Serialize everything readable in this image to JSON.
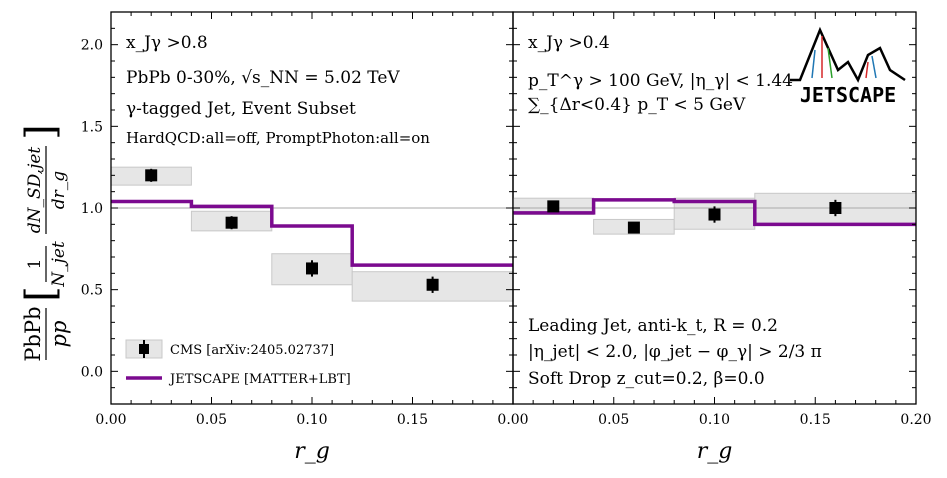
{
  "chart_data": {
    "type": "step-with-points",
    "y_label": {
      "ratio_num": "PbPb",
      "ratio_den": "pp",
      "frac1_num": "1",
      "frac1_den": "N_jet",
      "frac2_num": "dN_SD,jet",
      "frac2_den": "dr_g"
    },
    "y_range": [
      -0.2,
      2.2
    ],
    "y_ticks": [
      "0.0",
      "0.5",
      "1.0",
      "1.5",
      "2.0"
    ],
    "y_tick_values": [
      0.0,
      0.5,
      1.0,
      1.5,
      2.0
    ],
    "reference_line": 1.0,
    "legend": {
      "cms": "CMS [arXiv:2405.02737]",
      "jetscape": "JETSCAPE [MATTER+LBT]"
    },
    "logo_text": "JETSCAPE",
    "panels": [
      {
        "x_label": "r_g",
        "x_range": [
          0.0,
          0.2
        ],
        "x_ticks": [
          "0.00",
          "0.05",
          "0.10",
          "0.15"
        ],
        "x_tick_values": [
          0.0,
          0.05,
          0.1,
          0.15
        ],
        "annotations": [
          "x_Jγ >0.8",
          "PbPb 0-30%, √s_NN = 5.02 TeV",
          "γ-tagged Jet, Event Subset",
          "HardQCD:all=off, PromptPhoton:all=on"
        ],
        "cms": [
          {
            "x": 0.02,
            "y": 1.2,
            "err": 0.04,
            "sys_low": 1.14,
            "sys_high": 1.25,
            "bin": [
              0.0,
              0.04
            ]
          },
          {
            "x": 0.06,
            "y": 0.91,
            "err": 0.04,
            "sys_low": 0.86,
            "sys_high": 0.98,
            "bin": [
              0.04,
              0.08
            ]
          },
          {
            "x": 0.1,
            "y": 0.63,
            "err": 0.05,
            "sys_low": 0.53,
            "sys_high": 0.72,
            "bin": [
              0.08,
              0.12
            ]
          },
          {
            "x": 0.16,
            "y": 0.53,
            "err": 0.05,
            "sys_low": 0.43,
            "sys_high": 0.61,
            "bin": [
              0.12,
              0.2
            ]
          }
        ],
        "jetscape": {
          "edges": [
            0.0,
            0.04,
            0.08,
            0.12,
            0.2
          ],
          "values": [
            1.04,
            1.01,
            0.89,
            0.65
          ]
        }
      },
      {
        "x_label": "r_g",
        "x_range": [
          0.0,
          0.2
        ],
        "x_ticks": [
          "0.00",
          "0.05",
          "0.10",
          "0.15",
          "0.20"
        ],
        "x_tick_values": [
          0.0,
          0.05,
          0.1,
          0.15,
          0.2
        ],
        "annotations": [
          "x_Jγ >0.4",
          "p_T^γ > 100 GeV, |η_γ| < 1.44",
          "∑_{Δr<0.4} p_T < 5 GeV",
          "Leading Jet, anti-k_t, R = 0.2",
          "|η_jet| < 2.0, |φ_jet − φ_γ| > 2/3 π",
          "Soft Drop z_cut=0.2, β=0.0"
        ],
        "cms": [
          {
            "x": 0.02,
            "y": 1.01,
            "err": 0.03,
            "sys_low": 0.96,
            "sys_high": 1.06,
            "bin": [
              0.0,
              0.04
            ]
          },
          {
            "x": 0.06,
            "y": 0.88,
            "err": 0.03,
            "sys_low": 0.84,
            "sys_high": 0.93,
            "bin": [
              0.04,
              0.08
            ]
          },
          {
            "x": 0.1,
            "y": 0.96,
            "err": 0.05,
            "sys_low": 0.87,
            "sys_high": 1.06,
            "bin": [
              0.08,
              0.12
            ]
          },
          {
            "x": 0.16,
            "y": 1.0,
            "err": 0.05,
            "sys_low": 0.9,
            "sys_high": 1.09,
            "bin": [
              0.12,
              0.2
            ]
          }
        ],
        "jetscape": {
          "edges": [
            0.0,
            0.04,
            0.08,
            0.12,
            0.2
          ],
          "values": [
            0.97,
            1.05,
            1.04,
            0.9
          ]
        }
      }
    ]
  },
  "colors": {
    "jetscape_line": "#7b0a8f",
    "sys_band": "#e6e6e6",
    "sys_band_stroke": "#c8c8c8",
    "reference_line": "#aaaaaa",
    "marker": "#000000"
  }
}
